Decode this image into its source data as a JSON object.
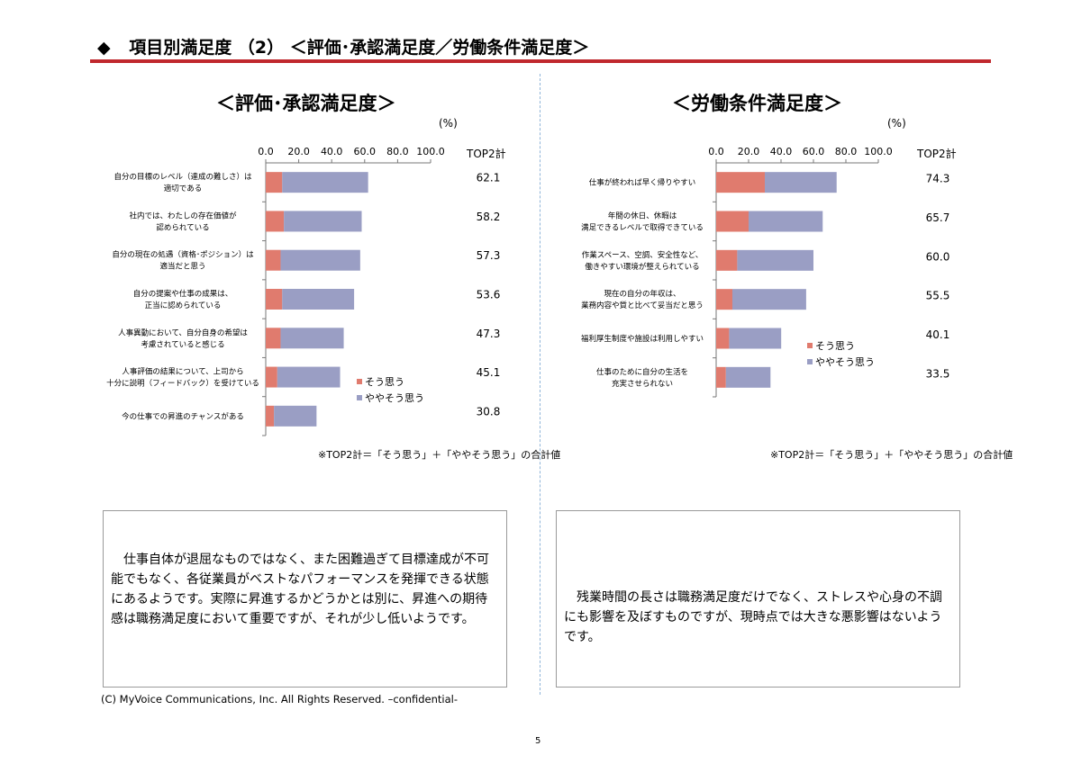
{
  "header": {
    "bullet": "◆",
    "text": "項目別満足度 （2） ＜評価･承認満足度／労働条件満足度＞"
  },
  "colors": {
    "accent_rule": "#c0282d",
    "sou_omou": "#e07b6e",
    "yaya": "#9a9ec4"
  },
  "charts": [
    {
      "title": "＜評価･承認満足度＞",
      "unit": "(%)",
      "top2_header": "TOP2計",
      "ticks": [
        "0.0",
        "20.0",
        "40.0",
        "60.0",
        "80.0",
        "100.0"
      ],
      "legend": [
        "そう思う",
        "ややそう思う"
      ],
      "note": "※TOP2計＝「そう思う」＋「ややそう思う」の合計値",
      "chart_data": {
        "type": "bar",
        "orientation": "horizontal",
        "stacked": true,
        "xlim": [
          0,
          100
        ],
        "categories": [
          [
            "自分の目標のレベル（達成の難しさ）は",
            "適切である"
          ],
          [
            "社内では、わたしの存在価値が",
            "認められている"
          ],
          [
            "自分の現在の処遇（資格･ポジション）は",
            "適当だと思う"
          ],
          [
            "自分の提案や仕事の成果は、",
            "正当に認められている"
          ],
          [
            "人事異動において、自分自身の希望は",
            "考慮されていると感じる"
          ],
          [
            "人事評価の結果について、上司から",
            "十分に説明（フィードバック）を受けている"
          ],
          [
            "今の仕事での昇進のチャンスがある"
          ]
        ],
        "series": [
          {
            "name": "そう思う",
            "values": [
              10,
              11,
              9,
              10,
              9,
              7,
              5
            ]
          },
          {
            "name": "ややそう思う",
            "values": [
              52.1,
              47.2,
              48.3,
              43.6,
              38.3,
              38.1,
              25.8
            ]
          }
        ],
        "top2": [
          "62.1",
          "58.2",
          "57.3",
          "53.6",
          "47.3",
          "45.1",
          "30.8"
        ]
      }
    },
    {
      "title": "＜労働条件満足度＞",
      "unit": "(%)",
      "top2_header": "TOP2計",
      "ticks": [
        "0.0",
        "20.0",
        "40.0",
        "60.0",
        "80.0",
        "100.0"
      ],
      "legend": [
        "そう思う",
        "ややそう思う"
      ],
      "note": "※TOP2計＝「そう思う」＋「ややそう思う」の合計値",
      "chart_data": {
        "type": "bar",
        "orientation": "horizontal",
        "stacked": true,
        "xlim": [
          0,
          100
        ],
        "categories": [
          [
            "仕事が終われば早く帰りやすい"
          ],
          [
            "年間の休日、休暇は",
            "満足できるレベルで取得できている"
          ],
          [
            "作業スペース、空調、安全性など、",
            "働きやすい環境が整えられている"
          ],
          [
            "現在の自分の年収は、",
            "業務内容や質と比べて妥当だと思う"
          ],
          [
            "福利厚生制度や施設は利用しやすい"
          ],
          [
            "仕事のために自分の生活を",
            "充実させられない"
          ]
        ],
        "series": [
          {
            "name": "そう思う",
            "values": [
              30,
              20,
              13,
              10,
              8,
              6
            ]
          },
          {
            "name": "ややそう思う",
            "values": [
              44.3,
              45.7,
              47,
              45.5,
              32.1,
              27.5
            ]
          }
        ],
        "top2": [
          "74.3",
          "65.7",
          "60.0",
          "55.5",
          "40.1",
          "33.5"
        ]
      }
    }
  ],
  "comments": [
    "　仕事自体が退屈なものではなく、また困難過ぎて目標達成が不可能でもなく、各従業員がベストなパフォーマンスを発揮できる状態にあるようです。実際に昇進するかどうかとは別に、昇進への期待感は職務満足度において重要ですが、それが少し低いようです。",
    "　残業時間の長さは職務満足度だけでなく、ストレスや心身の不調にも影響を及ぼすものですが、現時点では大きな悪影響はないようです。"
  ],
  "footer": {
    "copyright": "(C) MyVoice Communications, Inc. All Rights Reserved. –confidential-",
    "page_number": "5"
  }
}
